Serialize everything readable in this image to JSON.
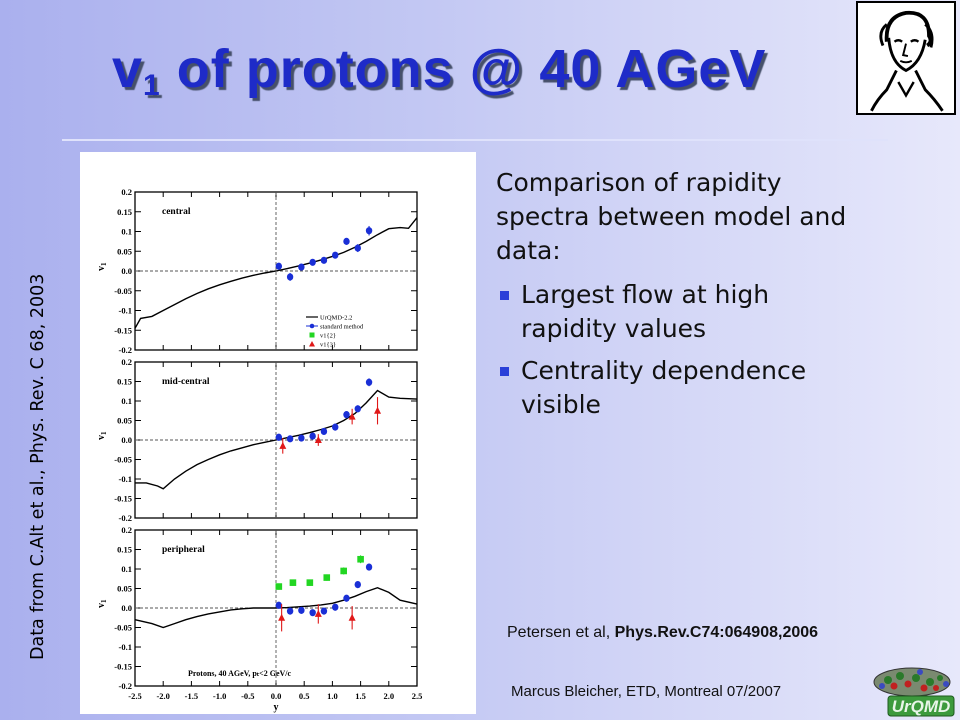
{
  "slide": {
    "title_main": "v",
    "title_sub": "1",
    "title_rest": " of protons @ 40 AGeV",
    "vertical_note": "Data from C.Alt et al., Phys. Rev. C 68, 2003",
    "intro": "Comparison of rapidity spectra between model and data:",
    "bullets": [
      "Largest flow at high rapidity values",
      "Centrality dependence visible"
    ],
    "citation_authors": "Petersen et al, ",
    "citation_ref": "Phys.Rev.C74:064908,2006",
    "footer": "Marcus Bleicher, ETD, Montreal 07/2007",
    "logo_text": "UrQMD",
    "colors": {
      "title": "#1e2bc8",
      "bullet": "#2a3fd8",
      "blue_data": "#1a2fd6",
      "green_data": "#22d622",
      "red_data": "#e01818"
    }
  },
  "chart_data": [
    {
      "type": "scatter",
      "title": "central",
      "ylabel": "v1",
      "xlim": [
        -2.5,
        2.5
      ],
      "ylim": [
        -0.2,
        0.2
      ],
      "yticks": [
        "0.2",
        "0.15",
        "0.1",
        "0.05",
        "0.0",
        "-0.05",
        "-0.1",
        "-0.15",
        "-0.2"
      ],
      "legend": [
        "UrQMD-2.2",
        "standard method",
        "v1{2}",
        "v1{3}"
      ],
      "model_curve": {
        "x": [
          -2.5,
          -2.4,
          -2.2,
          -2.0,
          -1.8,
          -1.6,
          -1.4,
          -1.2,
          -1.0,
          -0.8,
          -0.6,
          -0.4,
          -0.2,
          0.0,
          0.2,
          0.4,
          0.6,
          0.8,
          1.0,
          1.2,
          1.4,
          1.6,
          1.8,
          2.0,
          2.2,
          2.35,
          2.5
        ],
        "y": [
          -0.145,
          -0.12,
          -0.115,
          -0.1,
          -0.085,
          -0.07,
          -0.057,
          -0.045,
          -0.035,
          -0.026,
          -0.018,
          -0.011,
          -0.005,
          0.0,
          0.006,
          0.013,
          0.02,
          0.028,
          0.037,
          0.047,
          0.06,
          0.075,
          0.092,
          0.107,
          0.11,
          0.108,
          0.135
        ]
      },
      "series": [
        {
          "name": "standard method",
          "x": [
            0.05,
            0.25,
            0.45,
            0.65,
            0.85,
            1.05,
            1.25,
            1.45,
            1.65
          ],
          "y": [
            0.012,
            -0.015,
            0.01,
            0.022,
            0.027,
            0.04,
            0.075,
            0.058,
            0.102
          ],
          "err": [
            0.008,
            0.01,
            0.008,
            0.007,
            0.007,
            0.007,
            0.008,
            0.01,
            0.012
          ]
        }
      ]
    },
    {
      "type": "scatter",
      "title": "mid-central",
      "ylabel": "v1",
      "xlim": [
        -2.5,
        2.5
      ],
      "ylim": [
        -0.2,
        0.2
      ],
      "yticks": [
        "0.2",
        "0.15",
        "0.1",
        "0.05",
        "0.0",
        "-0.05",
        "-0.1",
        "-0.15",
        "-0.2"
      ],
      "model_curve": {
        "x": [
          -2.5,
          -2.3,
          -2.1,
          -2.0,
          -1.8,
          -1.6,
          -1.4,
          -1.2,
          -1.0,
          -0.8,
          -0.6,
          -0.4,
          -0.2,
          0.0,
          0.2,
          0.4,
          0.6,
          0.8,
          1.0,
          1.2,
          1.4,
          1.6,
          1.8,
          2.0,
          2.2,
          2.5
        ],
        "y": [
          -0.11,
          -0.11,
          -0.118,
          -0.125,
          -0.1,
          -0.08,
          -0.063,
          -0.05,
          -0.038,
          -0.028,
          -0.02,
          -0.012,
          -0.006,
          0.0,
          0.006,
          0.012,
          0.019,
          0.027,
          0.036,
          0.05,
          0.068,
          0.095,
          0.127,
          0.11,
          0.107,
          0.105
        ]
      },
      "series": [
        {
          "name": "standard method",
          "x": [
            0.05,
            0.25,
            0.45,
            0.65,
            0.85,
            1.05,
            1.25,
            1.45,
            1.65
          ],
          "y": [
            0.007,
            0.003,
            0.005,
            0.01,
            0.022,
            0.033,
            0.065,
            0.08,
            0.148
          ],
          "err": [
            0.005,
            0.005,
            0.005,
            0.005,
            0.006,
            0.007,
            0.008,
            0.009,
            0.01
          ]
        },
        {
          "name": "v1{3}",
          "x": [
            0.12,
            0.75,
            1.35,
            1.8
          ],
          "y": [
            -0.015,
            0.0,
            0.06,
            0.075
          ],
          "err": [
            0.02,
            0.015,
            0.02,
            0.035
          ]
        }
      ]
    },
    {
      "type": "scatter",
      "title": "peripheral",
      "ylabel": "v1",
      "xlabel": "y",
      "xlim": [
        -2.5,
        2.5
      ],
      "ylim": [
        -0.2,
        0.2
      ],
      "yticks": [
        "0.2",
        "0.15",
        "0.1",
        "0.05",
        "0.0",
        "-0.05",
        "-0.1",
        "-0.15",
        "-0.2"
      ],
      "xticks": [
        "-2.5",
        "-2.0",
        "-1.5",
        "-1.0",
        "-0.5",
        "0.0",
        "0.5",
        "1.0",
        "1.5",
        "2.0",
        "2.5"
      ],
      "annotation": "Protons, 40 AGeV, pₜ<2 GeV/c",
      "model_curve": {
        "x": [
          -2.5,
          -2.2,
          -2.0,
          -1.8,
          -1.6,
          -1.4,
          -1.2,
          -1.0,
          -0.8,
          -0.6,
          -0.4,
          -0.2,
          0.0,
          0.2,
          0.4,
          0.6,
          0.8,
          1.0,
          1.2,
          1.4,
          1.6,
          1.8,
          2.0,
          2.2,
          2.5
        ],
        "y": [
          -0.03,
          -0.04,
          -0.05,
          -0.04,
          -0.03,
          -0.022,
          -0.015,
          -0.01,
          -0.005,
          -0.002,
          0.0,
          0.0,
          0.0,
          0.001,
          0.003,
          0.005,
          0.008,
          0.012,
          0.02,
          0.03,
          0.042,
          0.052,
          0.04,
          0.02,
          0.01
        ]
      },
      "series": [
        {
          "name": "standard method",
          "x": [
            0.05,
            0.25,
            0.45,
            0.65,
            0.85,
            1.05,
            1.25,
            1.45,
            1.65
          ],
          "y": [
            0.007,
            -0.008,
            -0.006,
            -0.012,
            -0.008,
            0.002,
            0.025,
            0.06,
            0.105
          ],
          "err": [
            0.005,
            0.005,
            0.005,
            0.005,
            0.005,
            0.006,
            0.007,
            0.008,
            0.009
          ]
        },
        {
          "name": "v1{2}",
          "x": [
            0.05,
            0.3,
            0.6,
            0.9,
            1.2,
            1.5
          ],
          "y": [
            0.055,
            0.065,
            0.065,
            0.078,
            0.095,
            0.125
          ],
          "err": [
            0.008,
            0.008,
            0.008,
            0.008,
            0.009,
            0.01
          ]
        },
        {
          "name": "v1{3}",
          "x": [
            0.1,
            0.75,
            1.35
          ],
          "y": [
            -0.025,
            -0.015,
            -0.025
          ],
          "err": [
            0.035,
            0.025,
            0.03
          ]
        }
      ]
    }
  ]
}
